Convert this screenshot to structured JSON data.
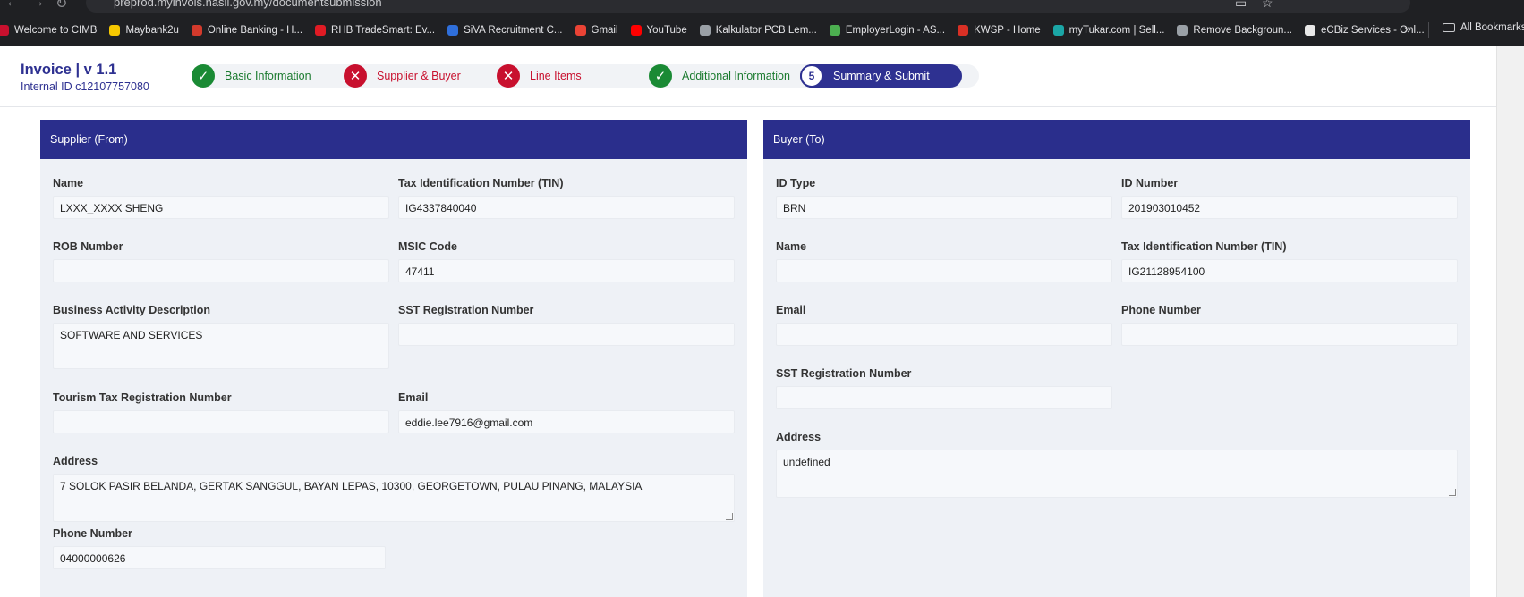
{
  "browser": {
    "url": "preprod.myinvois.hasil.gov.my/documentsubmission",
    "bookmarks": [
      {
        "label": "Welcome to CIMB",
        "icon": "cimb-icon",
        "color": "#c8102e"
      },
      {
        "label": "Maybank2u",
        "icon": "maybank-icon",
        "color": "#f6c800"
      },
      {
        "label": "Online Banking - H...",
        "icon": "hongleong-icon",
        "color": "#d33a2c"
      },
      {
        "label": "RHB TradeSmart: Ev...",
        "icon": "rhb-icon",
        "color": "#e01b24"
      },
      {
        "label": "SiVA Recruitment C...",
        "icon": "siva-icon",
        "color": "#2f6fdb"
      },
      {
        "label": "Gmail",
        "icon": "gmail-icon",
        "color": "#ea4335"
      },
      {
        "label": "YouTube",
        "icon": "youtube-icon",
        "color": "#ff0000"
      },
      {
        "label": "Kalkulator PCB Lem...",
        "icon": "globe-icon",
        "color": "#9aa0a6"
      },
      {
        "label": "EmployerLogin - AS...",
        "icon": "employer-icon",
        "color": "#4caf50"
      },
      {
        "label": "KWSP - Home",
        "icon": "kwsp-icon",
        "color": "#d93025"
      },
      {
        "label": "myTukar.com | Sell...",
        "icon": "mytukar-icon",
        "color": "#1ba6a6"
      },
      {
        "label": "Remove Backgroun...",
        "icon": "layers-icon",
        "color": "#9aa0a6"
      },
      {
        "label": "eCBiz Services - Onl...",
        "icon": "ecbiz-icon",
        "color": "#e8e8e8"
      }
    ],
    "all_bookmarks": "All Bookmarks",
    "more_symbol": "»"
  },
  "header": {
    "title": "Invoice | v 1.1",
    "subtitle": "Internal ID c12107757080"
  },
  "steps": [
    {
      "label": "Basic Information",
      "status": "done",
      "symbol": "✓"
    },
    {
      "label": "Supplier & Buyer",
      "status": "error",
      "symbol": "✕"
    },
    {
      "label": "Line Items",
      "status": "error",
      "symbol": "✕"
    },
    {
      "label": "Additional Information",
      "status": "done",
      "symbol": "✓"
    },
    {
      "label": "Summary & Submit",
      "status": "active",
      "symbol": "5"
    }
  ],
  "supplier": {
    "heading": "Supplier (From)",
    "name_label": "Name",
    "name_value": "LXXX_XXXX SHENG",
    "tin_label": "Tax Identification Number (TIN)",
    "tin_value": "IG4337840040",
    "rob_label": "ROB Number",
    "rob_value": "",
    "msic_label": "MSIC Code",
    "msic_value": "47411",
    "activity_label": "Business Activity Description",
    "activity_value": "SOFTWARE AND SERVICES",
    "sst_label": "SST Registration Number",
    "sst_value": "",
    "tourism_label": "Tourism Tax Registration Number",
    "tourism_value": "",
    "email_label": "Email",
    "email_value": "eddie.lee7916@gmail.com",
    "address_label": "Address",
    "address_value": "7 SOLOK PASIR BELANDA, GERTAK SANGGUL,  BAYAN LEPAS, 10300, GEORGETOWN, PULAU PINANG, MALAYSIA",
    "phone_label": "Phone Number",
    "phone_value": "04000000626"
  },
  "buyer": {
    "heading": "Buyer (To)",
    "idtype_label": "ID Type",
    "idtype_value": "BRN",
    "idnumber_label": "ID Number",
    "idnumber_value": "201903010452",
    "name_label": "Name",
    "name_value": "",
    "tin_label": "Tax Identification Number (TIN)",
    "tin_value": "IG21128954100",
    "email_label": "Email",
    "email_value": "",
    "phone_label": "Phone Number",
    "phone_value": "",
    "sst_label": "SST Registration Number",
    "sst_value": "",
    "address_label": "Address",
    "address_value": "undefined"
  }
}
